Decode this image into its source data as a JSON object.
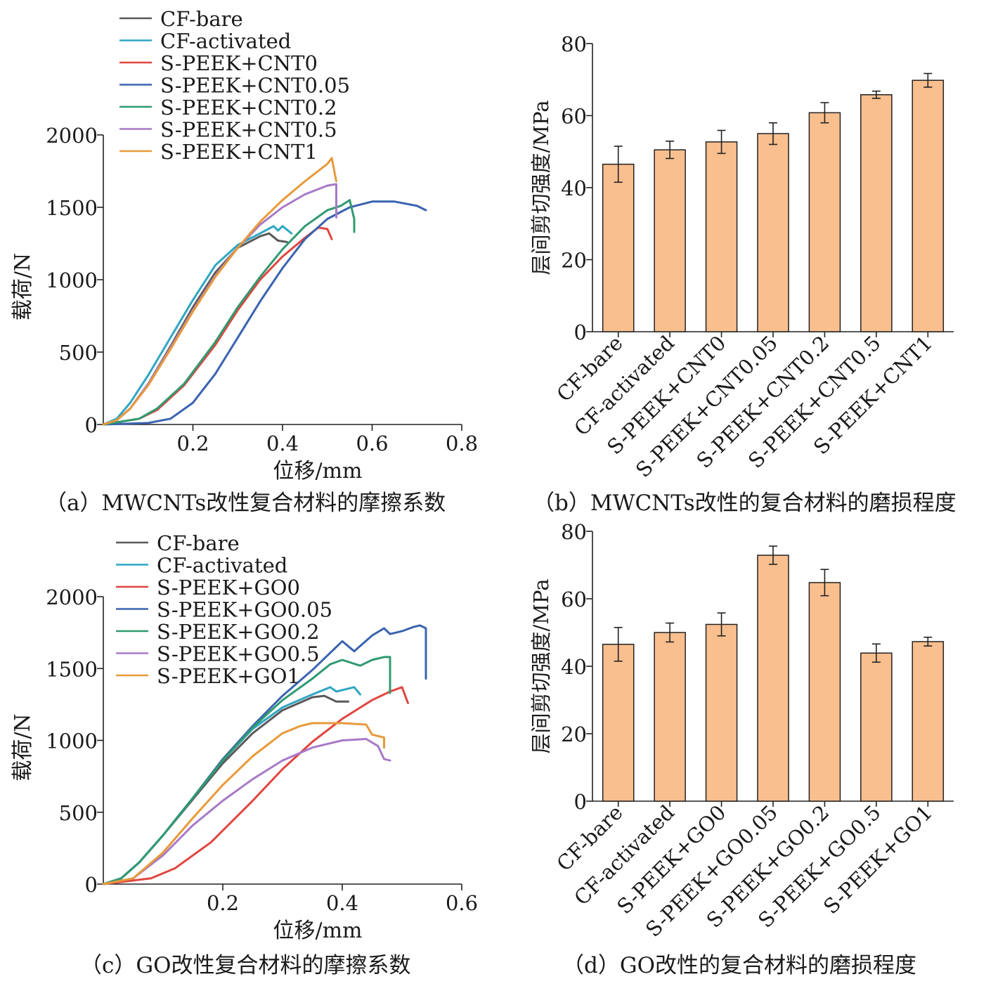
{
  "chart_data": [
    {
      "type": "line",
      "caption": "（a）MWCNTs改性复合材料的摩擦系数",
      "xlabel": "位移/mm",
      "ylabel": "载荷/N",
      "xlim": [
        0,
        0.8
      ],
      "ylim": [
        0,
        2000
      ],
      "xticks": [
        0.2,
        0.4,
        0.6,
        0.8
      ],
      "yticks": [
        0,
        500,
        1000,
        1500,
        2000
      ],
      "series": [
        {
          "name": "CF-bare",
          "color": "#595959",
          "x": [
            0,
            0.03,
            0.06,
            0.1,
            0.15,
            0.2,
            0.25,
            0.3,
            0.35,
            0.37,
            0.39,
            0.41
          ],
          "y": [
            0,
            30,
            110,
            280,
            540,
            810,
            1050,
            1220,
            1300,
            1320,
            1270,
            1260
          ]
        },
        {
          "name": "CF-activated",
          "color": "#2fa6c2",
          "x": [
            0,
            0.03,
            0.06,
            0.1,
            0.15,
            0.2,
            0.25,
            0.3,
            0.35,
            0.38,
            0.39,
            0.4,
            0.42
          ],
          "y": [
            0,
            40,
            150,
            340,
            600,
            860,
            1100,
            1240,
            1320,
            1370,
            1340,
            1370,
            1320
          ]
        },
        {
          "name": "S-PEEK+CNT0",
          "color": "#e0463f",
          "x": [
            0,
            0.08,
            0.12,
            0.18,
            0.25,
            0.3,
            0.35,
            0.4,
            0.45,
            0.48,
            0.5,
            0.51
          ],
          "y": [
            0,
            40,
            100,
            270,
            550,
            790,
            1000,
            1160,
            1290,
            1360,
            1350,
            1280
          ]
        },
        {
          "name": "S-PEEK+CNT0.05",
          "color": "#3a63b0",
          "x": [
            0,
            0.1,
            0.15,
            0.2,
            0.25,
            0.3,
            0.35,
            0.4,
            0.45,
            0.5,
            0.55,
            0.6,
            0.65,
            0.7,
            0.72
          ],
          "y": [
            0,
            10,
            40,
            150,
            350,
            600,
            850,
            1080,
            1280,
            1420,
            1500,
            1540,
            1540,
            1510,
            1480
          ]
        },
        {
          "name": "S-PEEK+CNT0.2",
          "color": "#2f9a70",
          "x": [
            0,
            0.08,
            0.12,
            0.18,
            0.25,
            0.3,
            0.35,
            0.4,
            0.45,
            0.5,
            0.53,
            0.55,
            0.56,
            0.56
          ],
          "y": [
            0,
            40,
            110,
            280,
            570,
            810,
            1020,
            1210,
            1370,
            1480,
            1510,
            1550,
            1420,
            1330
          ]
        },
        {
          "name": "S-PEEK+CNT0.5",
          "color": "#a77ac7",
          "x": [
            0,
            0.03,
            0.06,
            0.1,
            0.15,
            0.2,
            0.25,
            0.3,
            0.35,
            0.4,
            0.45,
            0.5,
            0.52,
            0.52
          ],
          "y": [
            0,
            30,
            110,
            280,
            530,
            790,
            1030,
            1220,
            1380,
            1500,
            1590,
            1650,
            1660,
            1430
          ]
        },
        {
          "name": "S-PEEK+CNT1",
          "color": "#e79a3a",
          "x": [
            0,
            0.03,
            0.06,
            0.1,
            0.15,
            0.2,
            0.25,
            0.3,
            0.35,
            0.4,
            0.45,
            0.5,
            0.51,
            0.52
          ],
          "y": [
            0,
            30,
            110,
            270,
            520,
            780,
            1020,
            1220,
            1400,
            1550,
            1680,
            1800,
            1840,
            1680
          ]
        }
      ]
    },
    {
      "type": "bar",
      "caption": "（b）MWCNTs改性的复合材料的磨损程度",
      "xlabel": "",
      "ylabel": "层间剪切强度/MPa",
      "ylim": [
        0,
        80
      ],
      "yticks": [
        0,
        20,
        40,
        60,
        80
      ],
      "categories": [
        "CF-bare",
        "CF-activated",
        "S-PEEK+CNT0",
        "S-PEEK+CNT0.05",
        "S-PEEK+CNT0.2",
        "S-PEEK+CNT0.5",
        "S-PEEK+CNT1"
      ],
      "values": [
        46.5,
        50.5,
        52.7,
        55.0,
        60.8,
        65.8,
        69.8
      ],
      "errors": [
        5.0,
        2.4,
        3.2,
        3.0,
        2.8,
        1.0,
        1.9
      ],
      "bar_color": "#f9bf8f"
    },
    {
      "type": "line",
      "caption": "（c）GO改性复合材料的摩擦系数",
      "xlabel": "位移/mm",
      "ylabel": "载荷/N",
      "xlim": [
        0,
        0.6
      ],
      "ylim": [
        0,
        2000
      ],
      "xticks": [
        0.2,
        0.4,
        0.6
      ],
      "yticks": [
        0,
        500,
        1000,
        1500,
        2000
      ],
      "series": [
        {
          "name": "CF-bare",
          "color": "#595959",
          "x": [
            0,
            0.03,
            0.06,
            0.1,
            0.15,
            0.2,
            0.25,
            0.3,
            0.35,
            0.37,
            0.39,
            0.41
          ],
          "y": [
            0,
            40,
            150,
            340,
            590,
            840,
            1050,
            1210,
            1300,
            1310,
            1270,
            1270
          ]
        },
        {
          "name": "CF-activated",
          "color": "#2fa6c2",
          "x": [
            0,
            0.03,
            0.06,
            0.1,
            0.15,
            0.2,
            0.25,
            0.3,
            0.35,
            0.38,
            0.39,
            0.42,
            0.43
          ],
          "y": [
            0,
            40,
            150,
            340,
            600,
            860,
            1080,
            1230,
            1320,
            1370,
            1340,
            1370,
            1320
          ]
        },
        {
          "name": "S-PEEK+GO0",
          "color": "#e0463f",
          "x": [
            0,
            0.08,
            0.12,
            0.18,
            0.25,
            0.3,
            0.35,
            0.4,
            0.45,
            0.48,
            0.5,
            0.51
          ],
          "y": [
            0,
            40,
            110,
            290,
            580,
            800,
            990,
            1150,
            1280,
            1340,
            1370,
            1260
          ]
        },
        {
          "name": "S-PEEK+GO0.05",
          "color": "#3a63b0",
          "x": [
            0,
            0.03,
            0.06,
            0.1,
            0.15,
            0.2,
            0.25,
            0.3,
            0.35,
            0.4,
            0.42,
            0.45,
            0.47,
            0.48,
            0.5,
            0.52,
            0.53,
            0.54,
            0.54
          ],
          "y": [
            0,
            40,
            150,
            340,
            600,
            870,
            1100,
            1310,
            1490,
            1690,
            1620,
            1730,
            1780,
            1740,
            1760,
            1790,
            1800,
            1780,
            1430
          ]
        },
        {
          "name": "S-PEEK+GO0.2",
          "color": "#2f9a70",
          "x": [
            0,
            0.03,
            0.06,
            0.1,
            0.15,
            0.2,
            0.25,
            0.3,
            0.35,
            0.38,
            0.4,
            0.43,
            0.45,
            0.47,
            0.48,
            0.48
          ],
          "y": [
            0,
            40,
            150,
            340,
            600,
            860,
            1090,
            1280,
            1430,
            1530,
            1560,
            1520,
            1560,
            1580,
            1580,
            1330
          ]
        },
        {
          "name": "S-PEEK+GO0.5",
          "color": "#a77ac7",
          "x": [
            0,
            0.05,
            0.1,
            0.15,
            0.2,
            0.25,
            0.3,
            0.35,
            0.4,
            0.44,
            0.46,
            0.47,
            0.48
          ],
          "y": [
            0,
            40,
            200,
            410,
            580,
            730,
            860,
            950,
            1000,
            1010,
            960,
            870,
            860
          ]
        },
        {
          "name": "S-PEEK+GO1",
          "color": "#e79a3a",
          "x": [
            0,
            0.05,
            0.1,
            0.15,
            0.2,
            0.25,
            0.3,
            0.33,
            0.35,
            0.4,
            0.44,
            0.45,
            0.47,
            0.47
          ],
          "y": [
            0,
            40,
            220,
            460,
            690,
            890,
            1050,
            1100,
            1120,
            1120,
            1110,
            1040,
            1020,
            950
          ]
        }
      ]
    },
    {
      "type": "bar",
      "caption": "（d）GO改性的复合材料的磨损程度",
      "xlabel": "",
      "ylabel": "层间剪切强度/MPa",
      "ylim": [
        0,
        80
      ],
      "yticks": [
        0,
        20,
        40,
        60,
        80
      ],
      "categories": [
        "CF-bare",
        "CF-activated",
        "S-PEEK+GO0",
        "S-PEEK+GO0.05",
        "S-PEEK+GO0.2",
        "S-PEEK+GO0.5",
        "S-PEEK+GO1"
      ],
      "values": [
        46.5,
        50.0,
        52.4,
        72.9,
        64.8,
        43.9,
        47.3
      ],
      "errors": [
        5.0,
        2.8,
        3.4,
        2.7,
        3.9,
        2.7,
        1.3
      ],
      "bar_color": "#f9bf8f"
    }
  ]
}
